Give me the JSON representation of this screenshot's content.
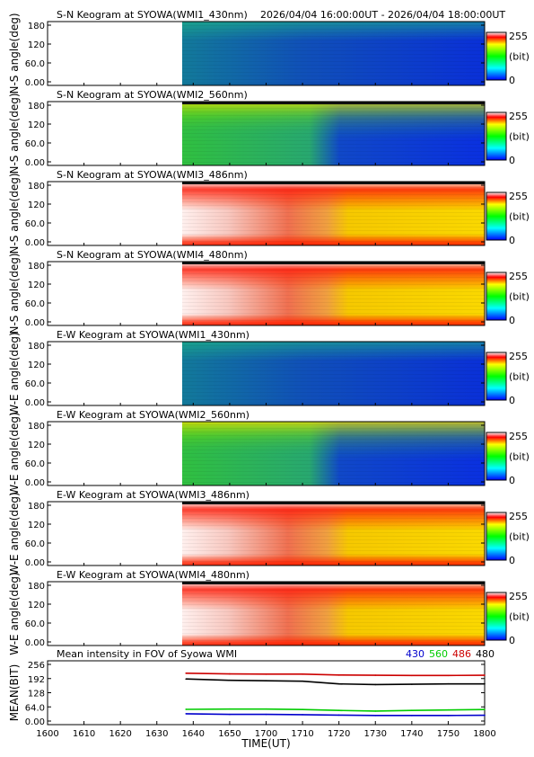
{
  "header": {
    "time_range": "2026/04/04 16:00:00UT - 2026/04/04 18:00:00UT"
  },
  "colorbar": {
    "max_label": "255",
    "unit_label": "(bit)",
    "min_label": "0"
  },
  "keogram_panels": [
    {
      "title": "S-N Keogram at SYOWA(WMI1_430nm)",
      "ylabel": "N-S angle(deg)",
      "yticks": [
        "180",
        "120",
        "60.0",
        "0.00"
      ],
      "palette": "blue"
    },
    {
      "title": "S-N Keogram at SYOWA(WMI2_560nm)",
      "ylabel": "N-S angle(deg)",
      "yticks": [
        "180",
        "120",
        "60.0",
        "0.00"
      ],
      "palette": "green"
    },
    {
      "title": "S-N Keogram at SYOWA(WMI3_486nm)",
      "ylabel": "N-S angle(deg)",
      "yticks": [
        "180",
        "120",
        "60.0",
        "0.00"
      ],
      "palette": "red"
    },
    {
      "title": "S-N Keogram at SYOWA(WMI4_480nm)",
      "ylabel": "N-S angle(deg)",
      "yticks": [
        "180",
        "120",
        "60.0",
        "0.00"
      ],
      "palette": "red"
    },
    {
      "title": "E-W Keogram at SYOWA(WMI1_430nm)",
      "ylabel": "W-E angle(deg)",
      "yticks": [
        "180",
        "120",
        "60.0",
        "0.00"
      ],
      "palette": "blue"
    },
    {
      "title": "E-W Keogram at SYOWA(WMI2_560nm)",
      "ylabel": "W-E angle(deg)",
      "yticks": [
        "180",
        "120",
        "60.0",
        "0.00"
      ],
      "palette": "green"
    },
    {
      "title": "E-W Keogram at SYOWA(WMI3_486nm)",
      "ylabel": "W-E angle(deg)",
      "yticks": [
        "180",
        "120",
        "60.0",
        "0.00"
      ],
      "palette": "red"
    },
    {
      "title": "E-W Keogram at SYOWA(WMI4_480nm)",
      "ylabel": "W-E angle(deg)",
      "yticks": [
        "180",
        "120",
        "60.0",
        "0.00"
      ],
      "palette": "red"
    }
  ],
  "chart_data": {
    "type": "line",
    "title": "Mean intensity in FOV of Syowa WMI",
    "xlabel": "TIME(UT)",
    "ylabel": "MEAN(BIT)",
    "xticks": [
      "1600",
      "1610",
      "1620",
      "1630",
      "1640",
      "1650",
      "1700",
      "1710",
      "1720",
      "1730",
      "1740",
      "1750",
      "1800"
    ],
    "yticks": [
      "256",
      "192",
      "128",
      "64.0",
      "0.00"
    ],
    "ylim": [
      0,
      256
    ],
    "x": [
      "16:38",
      "16:50",
      "17:00",
      "17:10",
      "17:20",
      "17:30",
      "17:40",
      "17:50",
      "18:00"
    ],
    "series": [
      {
        "name": "430",
        "color": "#0000cc",
        "values": [
          33,
          30,
          30,
          29,
          27,
          25,
          25,
          25,
          26
        ]
      },
      {
        "name": "560",
        "color": "#00cc00",
        "values": [
          53,
          54,
          54,
          52,
          48,
          45,
          48,
          50,
          52
        ]
      },
      {
        "name": "486",
        "color": "#cc0000",
        "values": [
          216,
          213,
          212,
          212,
          208,
          207,
          206,
          206,
          207
        ]
      },
      {
        "name": "480",
        "color": "#000000",
        "values": [
          190,
          184,
          182,
          180,
          168,
          165,
          166,
          168,
          168
        ]
      }
    ]
  }
}
